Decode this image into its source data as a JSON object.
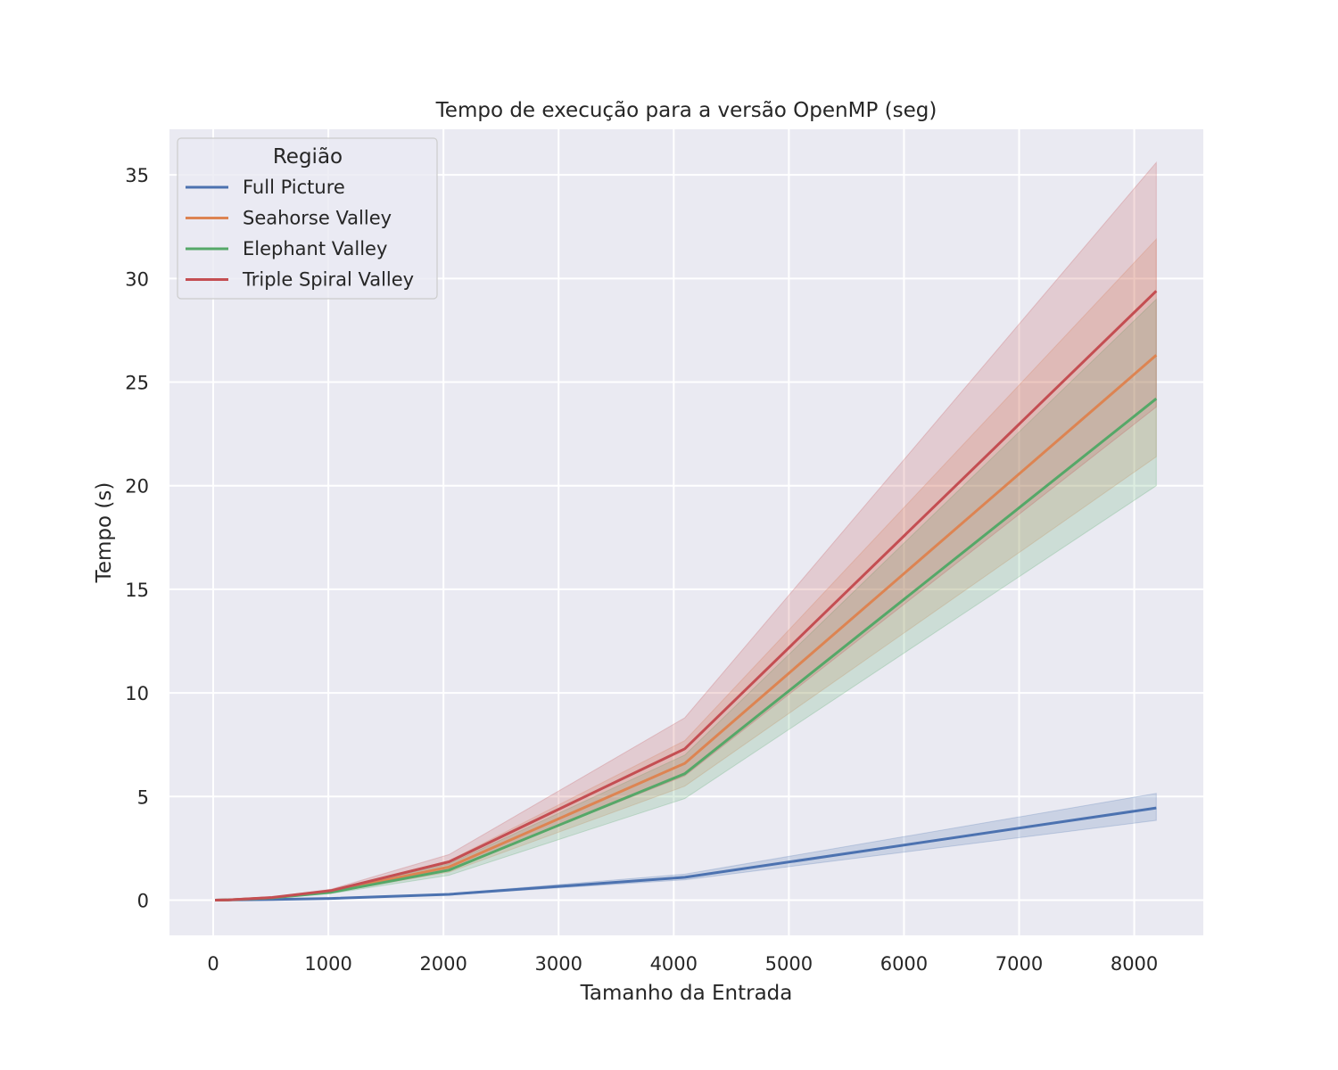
{
  "chart_data": {
    "type": "line",
    "title": "Tempo de execução para a versão OpenMP (seg)",
    "xlabel": "Tamanho da Entrada",
    "ylabel": "Tempo (s)",
    "xlim": [
      -380,
      8600
    ],
    "ylim": [
      -1.7,
      37.2
    ],
    "xticks": [
      0,
      1000,
      2000,
      3000,
      4000,
      5000,
      6000,
      7000,
      8000
    ],
    "xtick_labels": [
      "0",
      "1000",
      "2000",
      "3000",
      "4000",
      "5000",
      "6000",
      "7000",
      "8000"
    ],
    "yticks": [
      0,
      5,
      10,
      15,
      20,
      25,
      30,
      35
    ],
    "ytick_labels": [
      "0",
      "5",
      "10",
      "15",
      "20",
      "25",
      "30",
      "35"
    ],
    "grid": true,
    "legend": {
      "title": "Região",
      "position": "upper-left"
    },
    "x": [
      16,
      128,
      512,
      1024,
      2048,
      4096,
      8192
    ],
    "series": [
      {
        "name": "Full Picture",
        "color": "#4c72b0",
        "values": [
          0.0,
          0.01,
          0.03,
          0.08,
          0.28,
          1.1,
          4.45
        ],
        "ci_low": [
          0.0,
          0.01,
          0.03,
          0.07,
          0.25,
          0.98,
          3.85
        ],
        "ci_high": [
          0.0,
          0.01,
          0.03,
          0.09,
          0.31,
          1.25,
          5.15
        ]
      },
      {
        "name": "Seahorse Valley",
        "color": "#dd8452",
        "values": [
          0.0,
          0.01,
          0.12,
          0.42,
          1.6,
          6.6,
          26.3
        ],
        "ci_low": [
          0.0,
          0.01,
          0.1,
          0.36,
          1.35,
          5.5,
          21.4
        ],
        "ci_high": [
          0.0,
          0.01,
          0.14,
          0.48,
          1.9,
          7.7,
          31.9
        ]
      },
      {
        "name": "Elephant Valley",
        "color": "#55a868",
        "values": [
          0.0,
          0.01,
          0.11,
          0.38,
          1.45,
          6.1,
          24.2
        ],
        "ci_low": [
          0.0,
          0.01,
          0.09,
          0.32,
          1.2,
          4.9,
          20.0
        ],
        "ci_high": [
          0.0,
          0.01,
          0.13,
          0.44,
          1.75,
          7.0,
          29.0
        ]
      },
      {
        "name": "Triple Spiral Valley",
        "color": "#c44e52",
        "values": [
          0.0,
          0.01,
          0.13,
          0.46,
          1.85,
          7.3,
          29.4
        ],
        "ci_low": [
          0.0,
          0.01,
          0.11,
          0.39,
          1.5,
          6.0,
          23.8
        ],
        "ci_high": [
          0.0,
          0.01,
          0.15,
          0.53,
          2.2,
          8.8,
          35.6
        ]
      }
    ]
  }
}
